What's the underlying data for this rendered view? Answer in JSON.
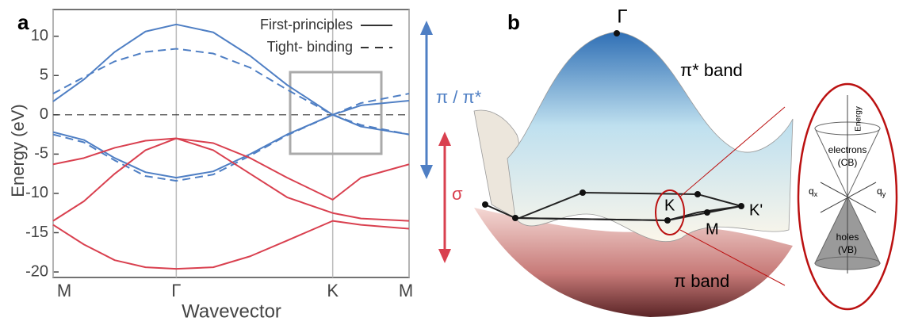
{
  "chart_data": {
    "type": "line",
    "panel_label": "a",
    "xlabel": "Wavevector",
    "ylabel": "Energy (eV)",
    "x": [
      0,
      0.25,
      0.5,
      0.75,
      1,
      1.3,
      1.6,
      1.9,
      2.27,
      2.5,
      2.89
    ],
    "xlim": [
      0,
      2.89
    ],
    "xticks": [
      {
        "value": 0,
        "label": "M"
      },
      {
        "value": 1,
        "label": "Γ"
      },
      {
        "value": 2.27,
        "label": "K"
      },
      {
        "value": 2.89,
        "label": "M"
      }
    ],
    "ylim": [
      -20.7,
      13.4
    ],
    "yticks": [
      10,
      5,
      0,
      -5,
      -10,
      -15,
      -20
    ],
    "grid": true,
    "reference_line": 0,
    "legend": [
      {
        "label": "First-principles",
        "dashed": false
      },
      {
        "label": "Tight- binding",
        "dashed": true
      }
    ],
    "series": [
      {
        "color": "#4f7fc4",
        "dashed": false,
        "values": [
          1.7,
          4.5,
          8,
          10.6,
          11.5,
          10.5,
          7.5,
          3.8,
          0,
          1.2,
          1.8
        ]
      },
      {
        "color": "#4f7fc4",
        "dashed": false,
        "values": [
          -2.2,
          -3.2,
          -5.5,
          -7.3,
          -8,
          -7.2,
          -5,
          -2.5,
          0,
          -1.5,
          -2.5
        ]
      },
      {
        "color": "#4f7fc4",
        "dashed": true,
        "values": [
          2.7,
          4.8,
          6.8,
          8,
          8.4,
          7.8,
          6,
          3.2,
          0,
          1.5,
          2.7
        ]
      },
      {
        "color": "#4f7fc4",
        "dashed": true,
        "values": [
          -2.5,
          -3.5,
          -5.8,
          -7.8,
          -8.4,
          -7.6,
          -5.2,
          -2.6,
          0,
          -1.3,
          -2.5
        ]
      },
      {
        "color": "#d9404f",
        "dashed": false,
        "values": [
          -6.3,
          -5.5,
          -4.2,
          -3.3,
          -3,
          -3.6,
          -5.5,
          -8,
          -10.8,
          -8,
          -6.3
        ]
      },
      {
        "color": "#d9404f",
        "dashed": false,
        "values": [
          -13.5,
          -11,
          -7.5,
          -4.5,
          -3,
          -4.5,
          -7.5,
          -10.5,
          -12.5,
          -13.2,
          -13.5
        ]
      },
      {
        "color": "#d9404f",
        "dashed": false,
        "values": [
          -14,
          -16.5,
          -18.5,
          -19.4,
          -19.6,
          -19.4,
          -18,
          -16,
          -13.5,
          -14,
          -14.5
        ]
      }
    ],
    "annotations": {
      "pi": "π / π*",
      "sigma": "σ"
    }
  },
  "panel_b": {
    "label": "b",
    "gamma": "Γ",
    "pi_star": "π* band",
    "pi": "π band",
    "k": "K",
    "k_prime": "K'",
    "m": "M",
    "inset": {
      "energy": "Energy",
      "electrons": "electrons",
      "cb": "(CB)",
      "holes": "holes",
      "vb": "(VB)",
      "qx": "q",
      "qx_sub": "x",
      "qy": "q",
      "qy_sub": "y"
    }
  }
}
